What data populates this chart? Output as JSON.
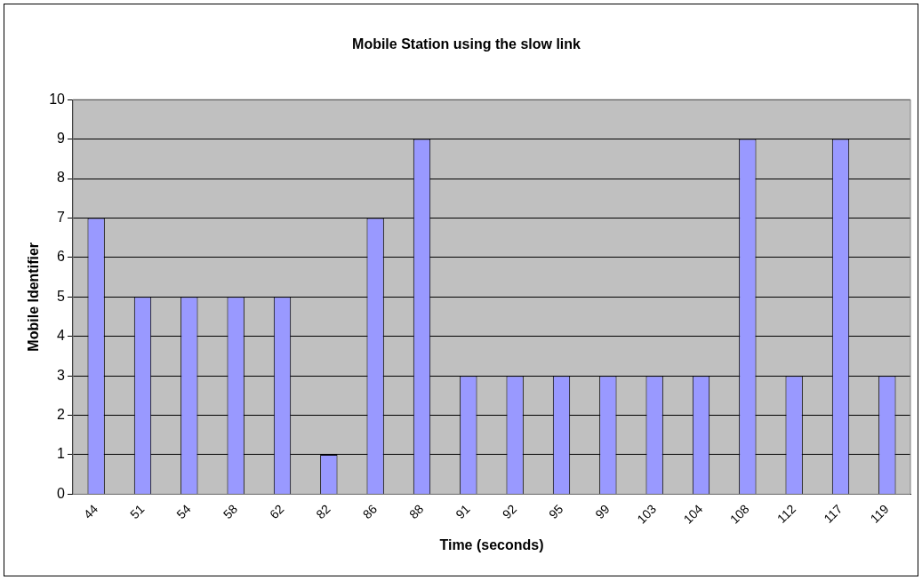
{
  "chart_data": {
    "type": "bar",
    "title": "Mobile Station using the slow link",
    "xlabel": "Time (seconds)",
    "ylabel": "Mobile Identifier",
    "categories": [
      "44",
      "51",
      "54",
      "58",
      "62",
      "82",
      "86",
      "88",
      "91",
      "92",
      "95",
      "99",
      "103",
      "104",
      "108",
      "112",
      "117",
      "119"
    ],
    "values": [
      7,
      5,
      5,
      5,
      5,
      1,
      7,
      9,
      3,
      3,
      3,
      3,
      3,
      3,
      9,
      3,
      9,
      3
    ],
    "color": "#9999ff",
    "ylim": [
      0,
      10
    ],
    "yticks": [
      0,
      1,
      2,
      3,
      4,
      5,
      6,
      7,
      8,
      9,
      10
    ],
    "grid": "y",
    "legend": false
  }
}
